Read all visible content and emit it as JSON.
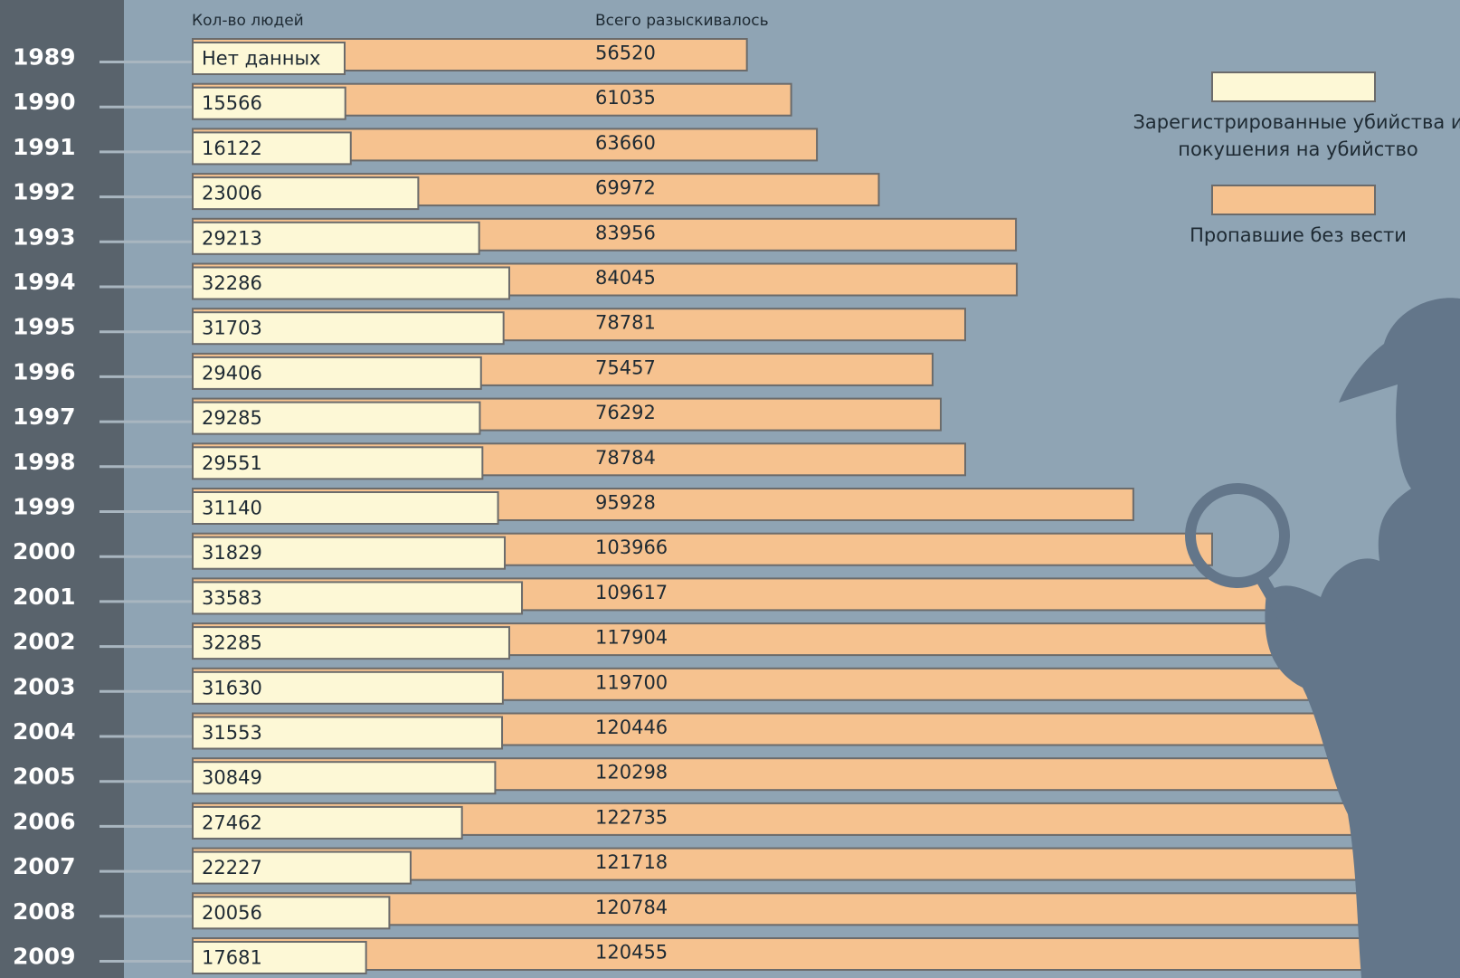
{
  "chart_data": {
    "type": "bar",
    "column_headers": [
      "Кол-во людей",
      "Всего разыскивалось"
    ],
    "categories": [
      "1989",
      "1990",
      "1991",
      "1992",
      "1993",
      "1994",
      "1995",
      "1996",
      "1997",
      "1998",
      "1999",
      "2000",
      "2001",
      "2002",
      "2003",
      "2004",
      "2005",
      "2006",
      "2007",
      "2008",
      "2009"
    ],
    "no_data_label": "Нет данных",
    "series": [
      {
        "name": "Пропавшие без вести",
        "color": "#f6c28f",
        "values": [
          56520,
          61035,
          63660,
          69972,
          83956,
          84045,
          78781,
          75457,
          76292,
          78784,
          95928,
          103966,
          109617,
          117904,
          119700,
          120446,
          120298,
          122735,
          121718,
          120784,
          120455
        ]
      },
      {
        "name": "Зарегистрированные убийства и покушения на убийство",
        "color": "#fdf8d6",
        "values": [
          null,
          15566,
          16122,
          23006,
          29213,
          32286,
          31703,
          29406,
          29285,
          29551,
          31140,
          31829,
          33583,
          32285,
          31630,
          31553,
          30849,
          27462,
          22227,
          20056,
          17681
        ]
      }
    ]
  }
}
